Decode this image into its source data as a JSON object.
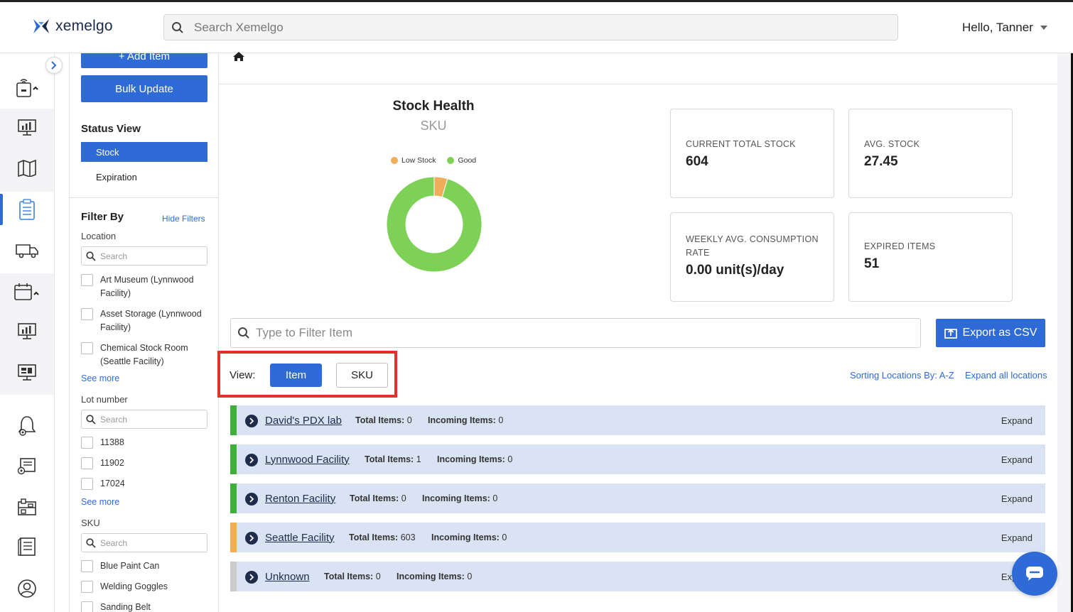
{
  "app": {
    "logo_text": "xemelgo",
    "search_placeholder": "Search Xemelgo",
    "user_greeting": "Hello, Tanner",
    "brand_color": "#2f6bd6"
  },
  "panel": {
    "add_item_label": "+ Add Item",
    "bulk_update_label": "Bulk Update",
    "status_view_title": "Status View",
    "status_options": [
      "Stock",
      "Expiration"
    ],
    "selected_status": "Stock",
    "filter_title": "Filter By",
    "hide_filters_label": "Hide Filters",
    "location": {
      "label": "Location",
      "search_placeholder": "Search",
      "options": [
        "Art Museum (Lynnwood Facility)",
        "Asset Storage (Lynnwood Facility)",
        "Chemical Stock Room (Seattle Facility)"
      ],
      "see_more": "See more"
    },
    "lot": {
      "label": "Lot number",
      "search_placeholder": "Search",
      "options": [
        "11388",
        "11902",
        "17024"
      ],
      "see_more": "See more"
    },
    "sku": {
      "label": "SKU",
      "search_placeholder": "Search",
      "options": [
        "Blue Paint Can",
        "Welding Goggles",
        "Sanding Belt"
      ]
    }
  },
  "stock_health": {
    "title": "Stock Health",
    "subtitle": "SKU",
    "legend": [
      {
        "label": "Low Stock",
        "color": "#f0ad5a"
      },
      {
        "label": "Good",
        "color": "#7ed157"
      }
    ]
  },
  "chart_data": {
    "type": "pie",
    "title": "Stock Health",
    "subtitle": "SKU",
    "donut": true,
    "categories": [
      "Low Stock",
      "Good"
    ],
    "values": [
      1,
      21
    ],
    "colors": [
      "#f0ad5a",
      "#7ed157"
    ],
    "legend_position": "top"
  },
  "stats": [
    {
      "label": "CURRENT TOTAL STOCK",
      "value": "604"
    },
    {
      "label": "AVG. STOCK",
      "value": "27.45"
    },
    {
      "label": "WEEKLY AVG. CONSUMPTION RATE",
      "value": "0.00 unit(s)/day"
    },
    {
      "label": "EXPIRED ITEMS",
      "value": "51"
    }
  ],
  "list": {
    "filter_placeholder": "Type to Filter Item",
    "export_label": "Export as CSV",
    "view_label": "View:",
    "view_options": [
      "Item",
      "SKU"
    ],
    "selected_view": "Item",
    "sort_label": "Sorting Locations By: A-Z",
    "expand_all_label": "Expand all locations",
    "total_items_label": "Total Items:",
    "incoming_items_label": "Incoming Items:",
    "expand_label": "Expand",
    "locations": [
      {
        "name": "David's PDX lab",
        "total": "0",
        "incoming": "0",
        "status_color": "#3fae3a"
      },
      {
        "name": "Lynnwood Facility",
        "total": "1",
        "incoming": "0",
        "status_color": "#3fae3a"
      },
      {
        "name": "Renton Facility",
        "total": "0",
        "incoming": "0",
        "status_color": "#3fae3a"
      },
      {
        "name": "Seattle Facility",
        "total": "603",
        "incoming": "0",
        "status_color": "#f0ad5a"
      },
      {
        "name": "Unknown",
        "total": "0",
        "incoming": "0",
        "status_color": "#cccccc"
      }
    ]
  }
}
